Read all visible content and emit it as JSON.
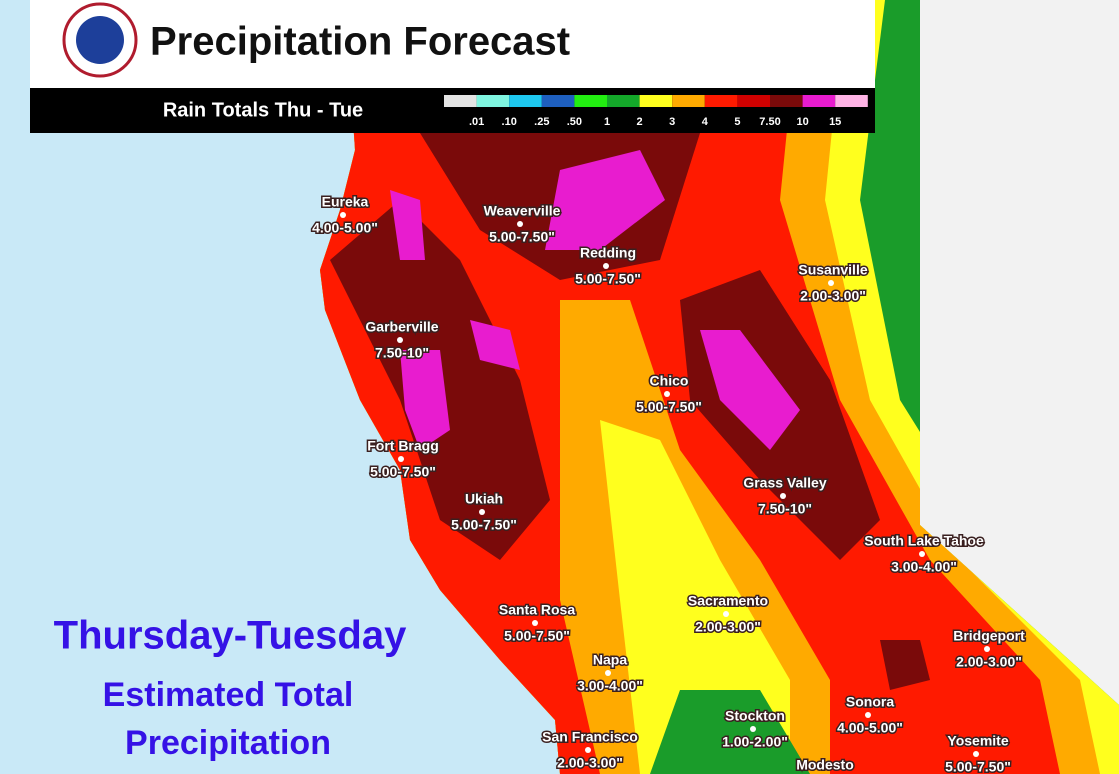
{
  "header": {
    "title": "Precipitation Forecast",
    "subtitle": "Rain Totals Thu - Tue"
  },
  "legend": {
    "colors": [
      "#e4e4e4",
      "#7ff5e0",
      "#1ec8f0",
      "#1e5fbf",
      "#22ee11",
      "#14a82a",
      "#ffff1e",
      "#ffaa00",
      "#ff1a00",
      "#d00000",
      "#7a0a0a",
      "#e81ccf",
      "#ffb4e6"
    ],
    "labels": [
      ".01",
      ".10",
      ".25",
      ".50",
      "1",
      "2",
      "3",
      "4",
      "5",
      "7.50",
      "10",
      "15"
    ]
  },
  "cities": [
    {
      "name": "Eureka",
      "amount": "4.00-5.00\""
    },
    {
      "name": "Weaverville",
      "amount": "5.00-7.50\""
    },
    {
      "name": "Redding",
      "amount": "5.00-7.50\""
    },
    {
      "name": "Susanville",
      "amount": "2.00-3.00\""
    },
    {
      "name": "Garberville",
      "amount": "7.50-10\""
    },
    {
      "name": "Chico",
      "amount": "5.00-7.50\""
    },
    {
      "name": "Fort Bragg",
      "amount": "5.00-7.50\""
    },
    {
      "name": "Ukiah",
      "amount": "5.00-7.50\""
    },
    {
      "name": "Grass Valley",
      "amount": "7.50-10\""
    },
    {
      "name": "South Lake Tahoe",
      "amount": "3.00-4.00\""
    },
    {
      "name": "Sacramento",
      "amount": "2.00-3.00\""
    },
    {
      "name": "Santa Rosa",
      "amount": "5.00-7.50\""
    },
    {
      "name": "Bridgeport",
      "amount": "2.00-3.00\""
    },
    {
      "name": "Napa",
      "amount": "3.00-4.00\""
    },
    {
      "name": "Sonora",
      "amount": "4.00-5.00\""
    },
    {
      "name": "Stockton",
      "amount": "1.00-2.00\""
    },
    {
      "name": "San Francisco",
      "amount": "2.00-3.00\""
    },
    {
      "name": "Yosemite",
      "amount": "5.00-7.50\""
    },
    {
      "name": "Modesto"
    }
  ],
  "caption": [
    "Thursday-Tuesday",
    "Estimated Total",
    "Precipitation"
  ]
}
